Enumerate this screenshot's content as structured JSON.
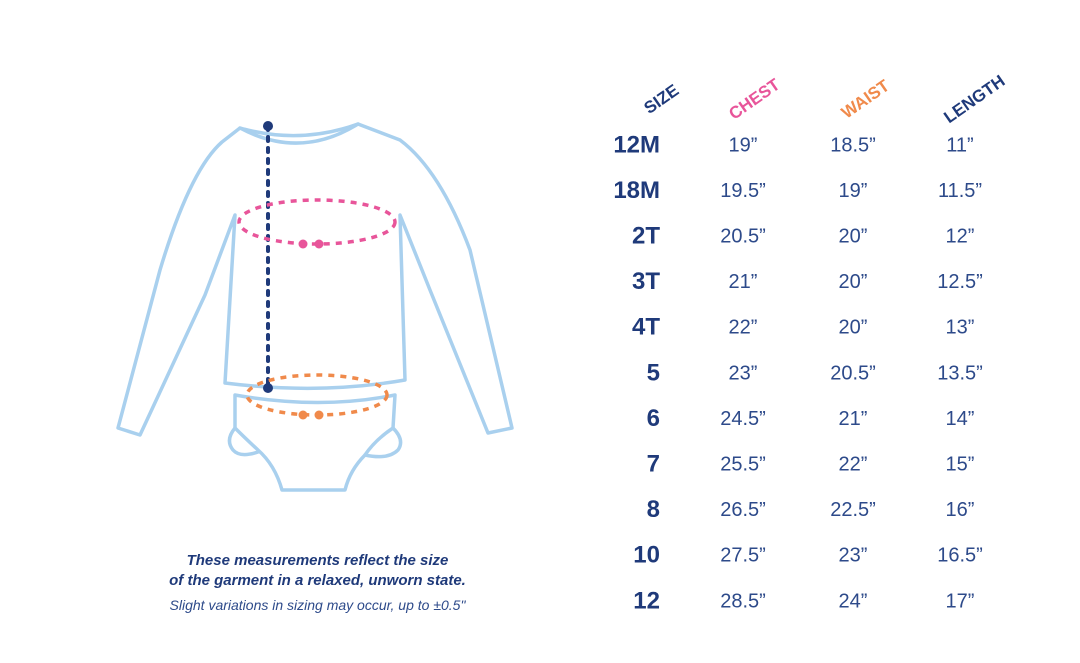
{
  "table": {
    "headers": [
      "SIZE",
      "CHEST",
      "WAIST",
      "LENGTH"
    ],
    "rows": [
      [
        "12M",
        "19”",
        "18.5”",
        "11”"
      ],
      [
        "18M",
        "19.5”",
        "19”",
        "11.5”"
      ],
      [
        "2T",
        "20.5”",
        "20”",
        "12”"
      ],
      [
        "3T",
        "21”",
        "20”",
        "12.5”"
      ],
      [
        "4T",
        "22”",
        "20”",
        "13”"
      ],
      [
        "5",
        "23”",
        "20.5”",
        "13.5”"
      ],
      [
        "6",
        "24.5”",
        "21”",
        "14”"
      ],
      [
        "7",
        "25.5”",
        "22”",
        "15”"
      ],
      [
        "8",
        "26.5”",
        "22.5”",
        "16”"
      ],
      [
        "10",
        "27.5”",
        "23”",
        "16.5”"
      ],
      [
        "12",
        "28.5”",
        "24”",
        "17”"
      ]
    ]
  },
  "caption": {
    "lines": [
      "These measurements reflect the size",
      "of the garment in a relaxed, unworn state."
    ],
    "note": "Slight variations in sizing may occur, up to ±0.5\""
  }
}
